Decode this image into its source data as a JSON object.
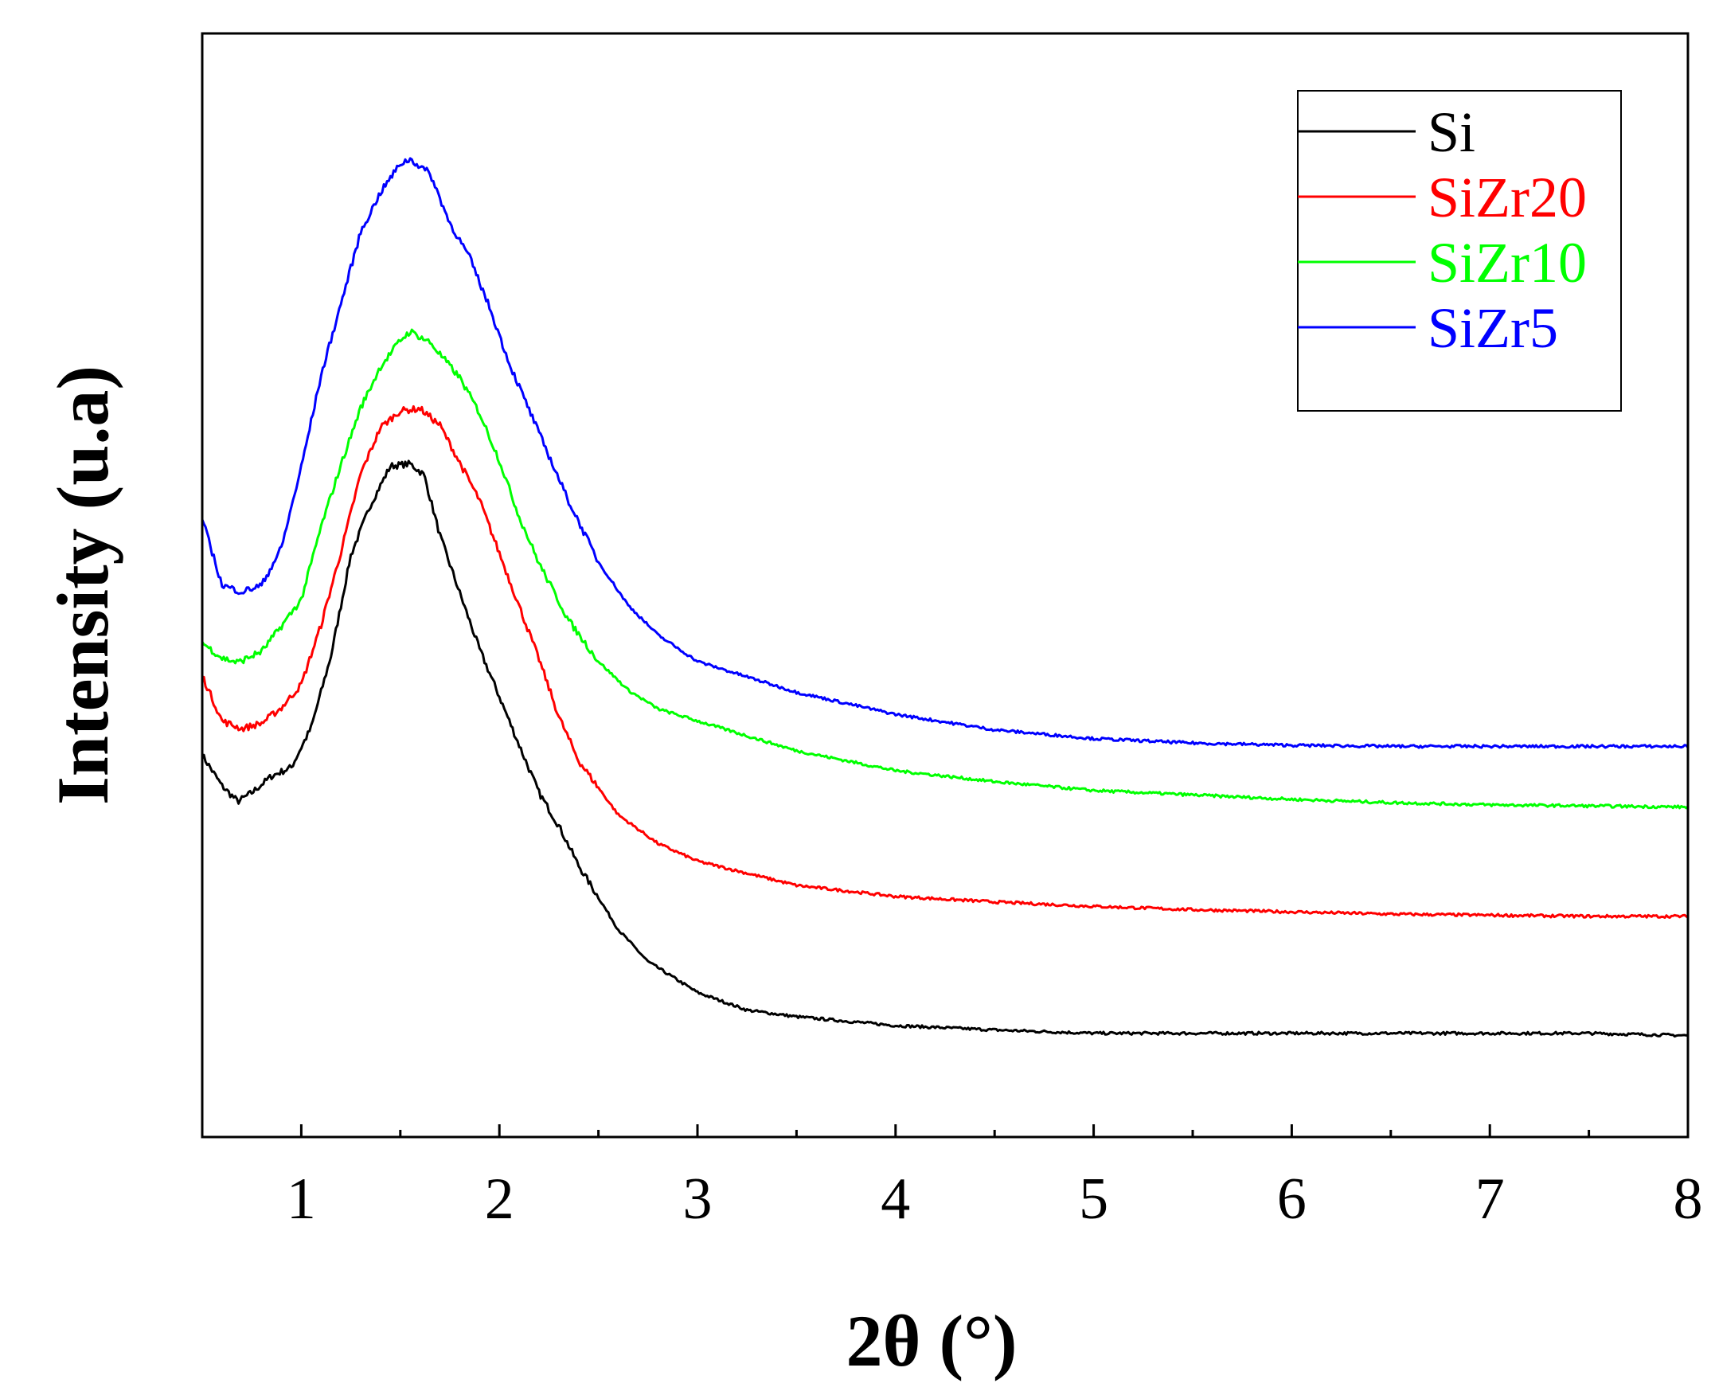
{
  "chart_data": {
    "type": "line",
    "title": "",
    "xlabel": "2θ (°)",
    "ylabel": "Intensity (u.a)",
    "xlim": [
      0.5,
      8
    ],
    "ylim": [
      0,
      1
    ],
    "x_ticks": [
      1,
      2,
      3,
      4,
      5,
      6,
      7,
      8
    ],
    "x_tick_labels": [
      "1",
      "2",
      "3",
      "4",
      "5",
      "6",
      "7",
      "8"
    ],
    "y_ticks_shown": false,
    "grid": false,
    "legend_position": "top-right",
    "series": [
      {
        "name": "Si",
        "color": "#000000",
        "x": [
          0.5,
          0.6,
          0.68,
          0.75,
          0.85,
          0.95,
          1.05,
          1.15,
          1.25,
          1.35,
          1.45,
          1.55,
          1.62,
          1.7,
          1.8,
          1.9,
          2.0,
          2.1,
          2.2,
          2.3,
          2.4,
          2.5,
          2.6,
          2.75,
          3.0,
          3.25,
          3.5,
          3.75,
          4.0,
          4.5,
          5.0,
          5.5,
          6.0,
          6.5,
          7.0,
          7.5,
          8.0
        ],
        "y": [
          0.346,
          0.318,
          0.304,
          0.312,
          0.327,
          0.335,
          0.371,
          0.436,
          0.527,
          0.573,
          0.608,
          0.61,
          0.6,
          0.545,
          0.493,
          0.442,
          0.399,
          0.355,
          0.312,
          0.282,
          0.246,
          0.217,
          0.188,
          0.159,
          0.131,
          0.115,
          0.109,
          0.105,
          0.101,
          0.097,
          0.094,
          0.094,
          0.094,
          0.094,
          0.094,
          0.094,
          0.092
        ]
      },
      {
        "name": "SiZr20",
        "color": "#ff0000",
        "x": [
          0.5,
          0.6,
          0.7,
          0.8,
          0.9,
          1.0,
          1.1,
          1.2,
          1.3,
          1.4,
          1.5,
          1.6,
          1.7,
          1.8,
          1.9,
          2.0,
          2.1,
          2.2,
          2.3,
          2.4,
          2.6,
          2.8,
          3.0,
          3.5,
          4.0,
          4.5,
          5.0,
          5.5,
          6.0,
          6.5,
          7.0,
          7.5,
          8.0
        ],
        "y": [
          0.418,
          0.377,
          0.37,
          0.375,
          0.389,
          0.41,
          0.464,
          0.53,
          0.601,
          0.643,
          0.658,
          0.66,
          0.645,
          0.611,
          0.577,
          0.529,
          0.481,
          0.433,
          0.381,
          0.341,
          0.292,
          0.266,
          0.25,
          0.228,
          0.218,
          0.213,
          0.209,
          0.206,
          0.204,
          0.202,
          0.201,
          0.2,
          0.2
        ]
      },
      {
        "name": "SiZr10",
        "color": "#00ff00",
        "x": [
          0.5,
          0.6,
          0.68,
          0.8,
          0.9,
          1.0,
          1.1,
          1.2,
          1.3,
          1.4,
          1.5,
          1.55,
          1.65,
          1.8,
          1.9,
          2.0,
          2.1,
          2.2,
          2.35,
          2.5,
          2.65,
          2.8,
          3.0,
          3.5,
          4.0,
          4.5,
          5.0,
          5.5,
          6.0,
          6.5,
          7.0,
          7.5,
          8.0
        ],
        "y": [
          0.448,
          0.434,
          0.43,
          0.44,
          0.463,
          0.487,
          0.553,
          0.609,
          0.661,
          0.698,
          0.722,
          0.73,
          0.72,
          0.688,
          0.656,
          0.613,
          0.562,
          0.52,
          0.468,
          0.431,
          0.405,
          0.388,
          0.377,
          0.35,
          0.332,
          0.322,
          0.314,
          0.31,
          0.306,
          0.303,
          0.301,
          0.3,
          0.299
        ]
      },
      {
        "name": "SiZr5",
        "color": "#0000ff",
        "x": [
          0.5,
          0.6,
          0.7,
          0.8,
          0.9,
          1.0,
          1.1,
          1.2,
          1.3,
          1.4,
          1.5,
          1.55,
          1.65,
          1.75,
          1.85,
          1.95,
          2.05,
          2.2,
          2.35,
          2.5,
          2.65,
          2.8,
          3.0,
          3.5,
          4.0,
          4.5,
          5.0,
          5.5,
          6.0,
          6.5,
          7.0,
          7.5,
          8.0
        ],
        "y": [
          0.56,
          0.5,
          0.494,
          0.5,
          0.534,
          0.607,
          0.69,
          0.755,
          0.82,
          0.856,
          0.882,
          0.886,
          0.873,
          0.828,
          0.797,
          0.752,
          0.701,
          0.638,
          0.576,
          0.521,
          0.482,
          0.455,
          0.431,
          0.403,
          0.383,
          0.369,
          0.361,
          0.357,
          0.355,
          0.354,
          0.354,
          0.354,
          0.354
        ]
      }
    ]
  }
}
